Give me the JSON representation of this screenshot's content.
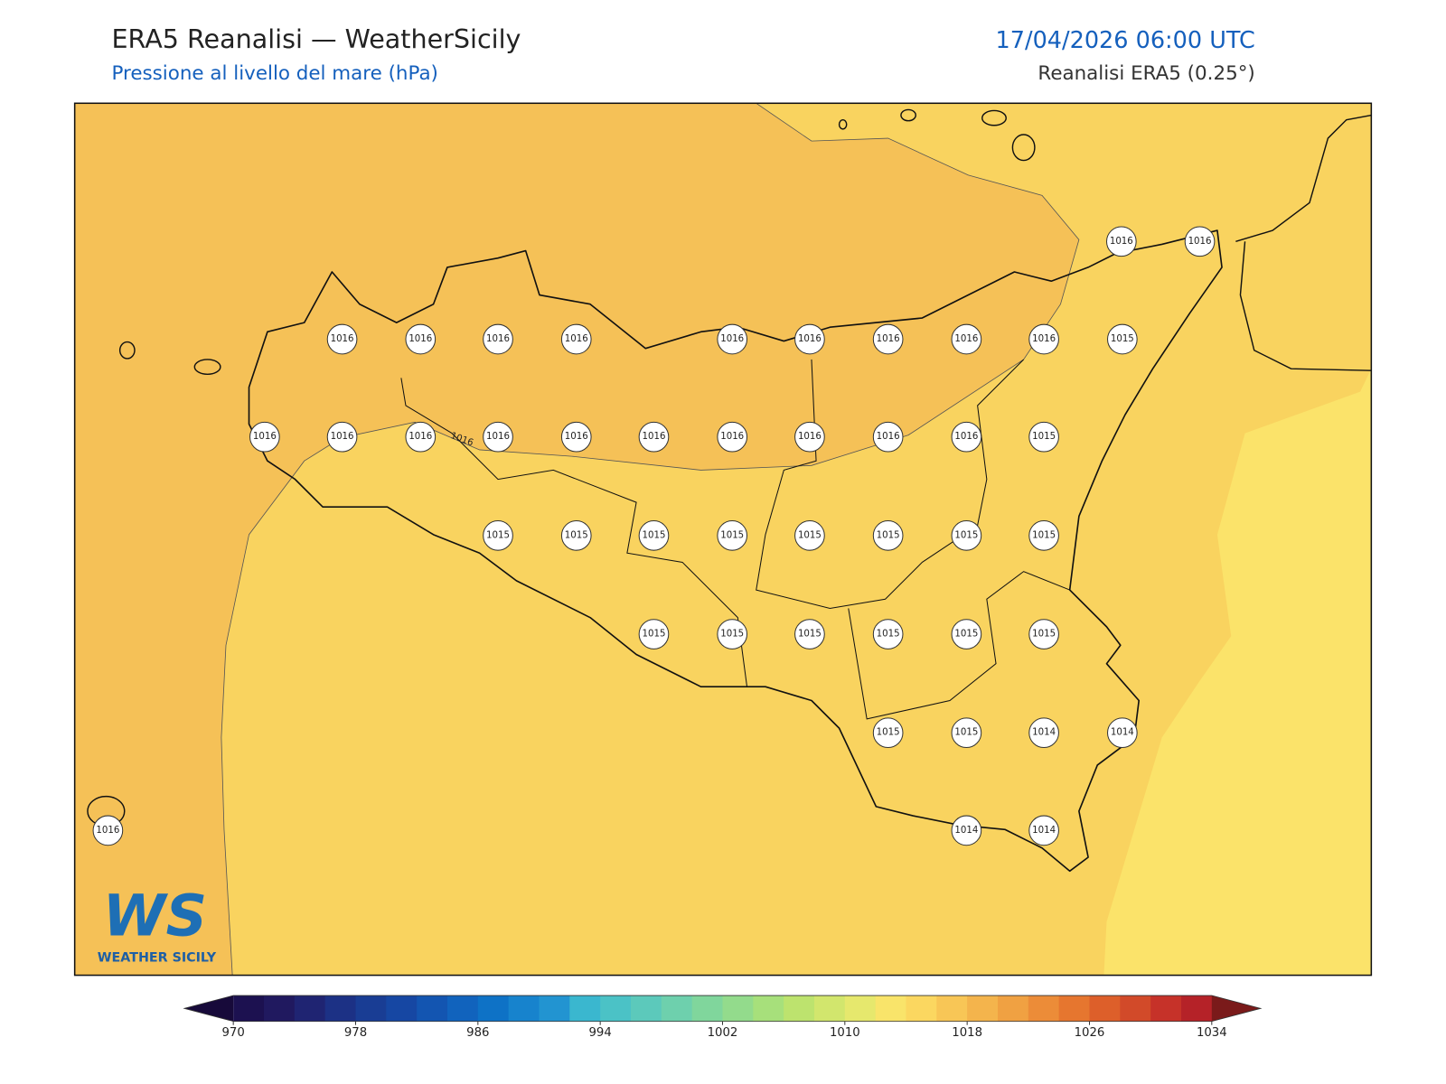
{
  "header": {
    "title": "ERA5 Reanalisi — WeatherSicily",
    "subtitle": "Pressione al livello del mare (hPa)",
    "datetime": "17/04/2026 06:00 UTC",
    "source": "Reanalisi ERA5 (0.25°)"
  },
  "map": {
    "contour_label": "1016",
    "stations": [
      1016,
      1016,
      1016,
      1016,
      1016,
      1016,
      1016,
      1016,
      1016,
      1016,
      1016,
      1015,
      1016,
      1016,
      1016,
      1016,
      1016,
      1016,
      1016,
      1016,
      1016,
      1016,
      1015,
      1015,
      1015,
      1015,
      1015,
      1015,
      1015,
      1015,
      1015,
      1015,
      1015,
      1015,
      1015,
      1015,
      1015,
      1015,
      1015,
      1014,
      1014,
      1016,
      1014,
      1014
    ]
  },
  "logo": {
    "mark": "WS",
    "name": "WEATHER SICILY"
  },
  "colorbar": {
    "range": [
      970,
      1034
    ],
    "ticks": [
      970,
      978,
      986,
      994,
      1002,
      1010,
      1018,
      1026,
      1034
    ],
    "under_color": "#170a3a",
    "over_color": "#7a1a1a",
    "colors": [
      "#1c1150",
      "#20195f",
      "#1f2472",
      "#1c3185",
      "#193d94",
      "#1647a3",
      "#1355b1",
      "#1163bd",
      "#0e72c6",
      "#1783cd",
      "#2294d1",
      "#3ab7cf",
      "#4bc2c6",
      "#5cc9bb",
      "#6ed0ad",
      "#80d69c",
      "#93db8c",
      "#a7e07b",
      "#bde36e",
      "#d2e66d",
      "#e6e86d",
      "#f9e46a",
      "#fbd760",
      "#f8c656",
      "#f4b44c",
      "#f0a142",
      "#ec8c38",
      "#e6762f",
      "#dd5f2a",
      "#d24a29",
      "#c63229",
      "#b52228"
    ]
  }
}
